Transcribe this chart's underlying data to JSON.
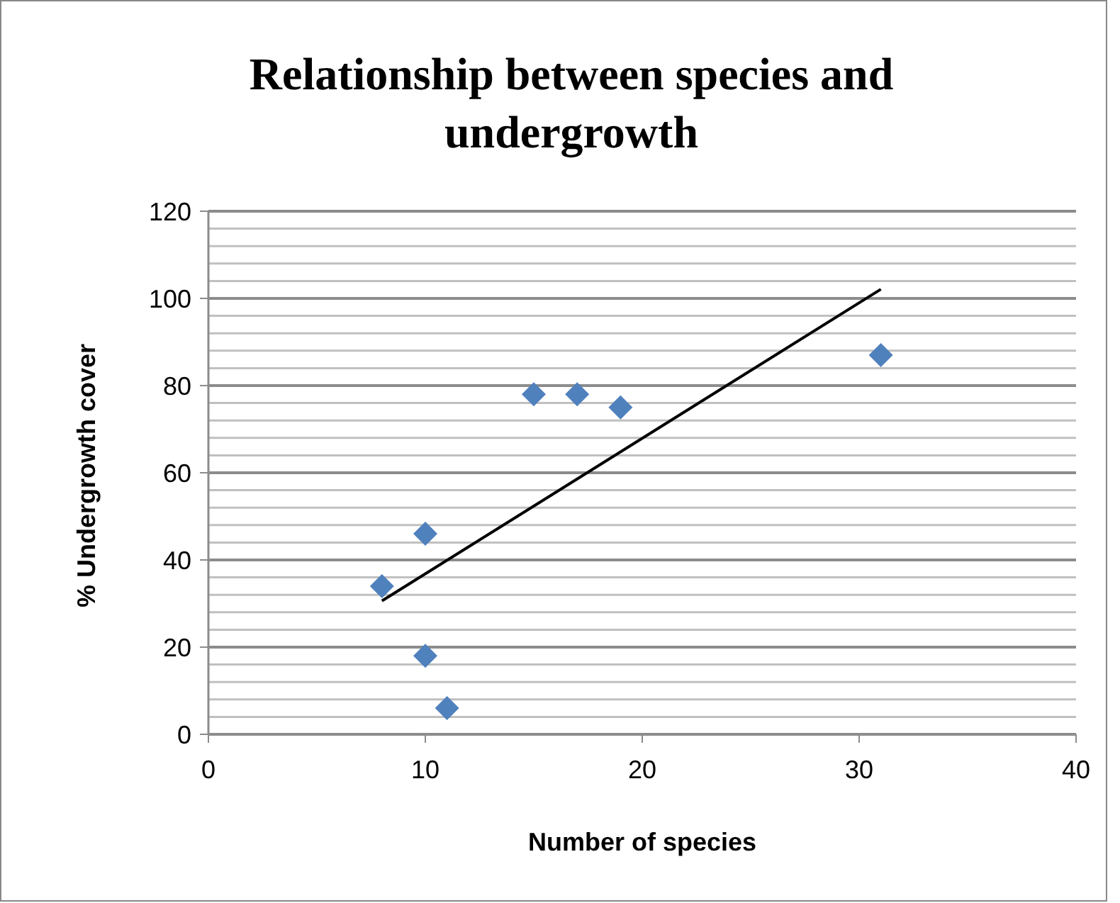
{
  "chart_data": {
    "type": "scatter",
    "title": "Relationship between species and undergrowth",
    "xlabel": "Number of species",
    "ylabel": "% Undergrowth cover",
    "x": [
      8,
      10,
      10,
      11,
      15,
      17,
      19,
      31
    ],
    "series": [
      {
        "color": "#4f81bd",
        "marker": "diamond",
        "values": [
          34,
          46,
          18,
          6,
          78,
          78,
          75,
          87
        ]
      },
      {
        "type": "line",
        "color": "#000000",
        "x": [
          8,
          31
        ],
        "values": [
          30.6,
          102.1
        ],
        "marker": "none",
        "line_style": "solid"
      }
    ],
    "xlim": [
      0,
      40
    ],
    "xticks": [
      0,
      10,
      20,
      30,
      40
    ],
    "ylim": [
      0,
      120
    ],
    "yticks": [
      0,
      {
        "value": 4,
        "label": null
      },
      {
        "value": 8,
        "label": null
      },
      {
        "value": 12,
        "label": null
      },
      {
        "value": 16,
        "label": null
      },
      20,
      {
        "value": 24,
        "label": null
      },
      {
        "value": 28,
        "label": null
      },
      {
        "value": 32,
        "label": null
      },
      {
        "value": 36,
        "label": null
      },
      40,
      {
        "value": 44,
        "label": null
      },
      {
        "value": 48,
        "label": null
      },
      {
        "value": 52,
        "label": null
      },
      {
        "value": 56,
        "label": null
      },
      60,
      {
        "value": 64,
        "label": null
      },
      {
        "value": 68,
        "label": null
      },
      {
        "value": 72,
        "label": null
      },
      {
        "value": 76,
        "label": null
      },
      80,
      {
        "value": 84,
        "label": null
      },
      {
        "value": 88,
        "label": null
      },
      {
        "value": 92,
        "label": null
      },
      {
        "value": 96,
        "label": null
      },
      100,
      {
        "value": 104,
        "label": null
      },
      {
        "value": 108,
        "label": null
      },
      {
        "value": 112,
        "label": null
      },
      {
        "value": 116,
        "label": null
      },
      120
    ],
    "grid": "y"
  }
}
